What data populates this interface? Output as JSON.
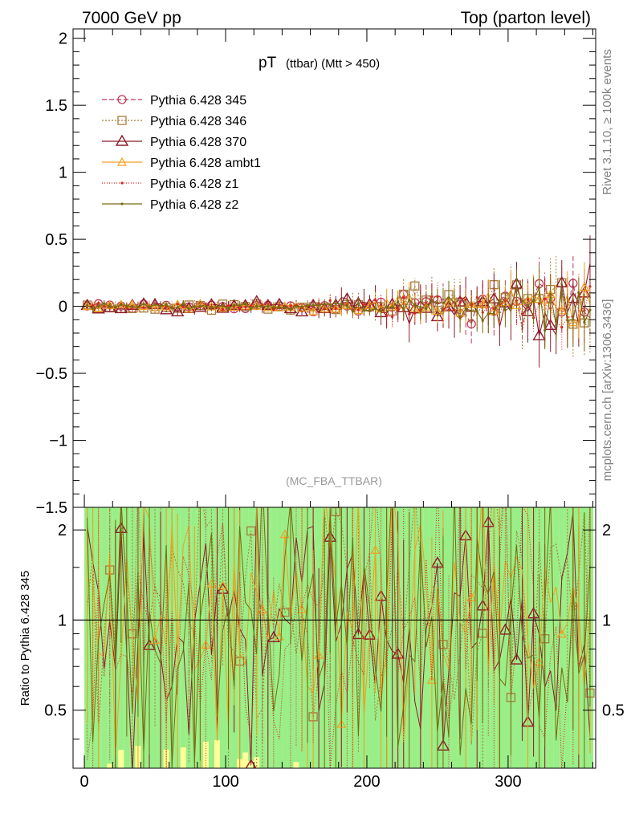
{
  "header": {
    "left": "7000 GeV pp",
    "right": "Top (parton level)"
  },
  "side_labels": {
    "rivet": "Rivet 3.1.10, ≥ 100k events",
    "mcplots": "mcplots.cern.ch [arXiv:1306.3436]"
  },
  "chart_data": [
    {
      "type": "line",
      "title_main": "pT",
      "title_sub": "(ttbar) (Mtt > 450)",
      "watermark": "(MC_FBA_TTBAR)",
      "xlabel": "",
      "ylabel": "",
      "xlim": [
        -8,
        362
      ],
      "ylim": [
        -1.5,
        2.07
      ],
      "xticks": [
        0,
        100,
        200,
        300
      ],
      "yticks": [
        -1.5,
        -1,
        -0.5,
        0,
        0.5,
        1,
        1.5,
        2
      ],
      "ytick_labels": [
        "−1.5",
        "−1",
        "−0.5",
        "0",
        "0.5",
        "1",
        "1.5",
        "2"
      ],
      "legend_position": "top-left",
      "series": [
        {
          "name": "Pythia 6.428 345",
          "color": "#c0395a",
          "marker": "circle",
          "dash": "6,3",
          "amp": 0.14
        },
        {
          "name": "Pythia 6.428 346",
          "color": "#a67c38",
          "marker": "square",
          "dash": "2,2",
          "amp": 0.16
        },
        {
          "name": "Pythia 6.428 370",
          "color": "#8b1a2b",
          "marker": "triangle",
          "dash": "",
          "amp": 0.17
        },
        {
          "name": "Pythia 6.428 ambt1",
          "color": "#f0a020",
          "marker": "triangle-small",
          "dash": "",
          "amp": 0.12
        },
        {
          "name": "Pythia 6.428 z1",
          "color": "#e02020",
          "marker": "dot",
          "dash": "1,2",
          "amp": 0.13
        },
        {
          "name": "Pythia 6.428 z2",
          "color": "#7a6a10",
          "marker": "dot",
          "dash": "",
          "amp": 0.12
        }
      ],
      "x_range": [
        0,
        360
      ],
      "bin_width": 4,
      "trend": {
        "x_start": 150,
        "amp_start": 0.04,
        "amp_end": 0.32
      }
    },
    {
      "type": "line",
      "ylabel": "Ratio to Pythia 6.428 345",
      "xlim": [
        -8,
        362
      ],
      "ylim": [
        0.32,
        2.38
      ],
      "xticks": [
        0,
        100,
        200,
        300
      ],
      "yticks": [
        0.5,
        1,
        2
      ],
      "ytick_labels": [
        "0.5",
        "1",
        "2"
      ],
      "reference_line": 1,
      "band_colors": {
        "outer": "#ffff99",
        "inner": "#99ee88"
      }
    }
  ]
}
